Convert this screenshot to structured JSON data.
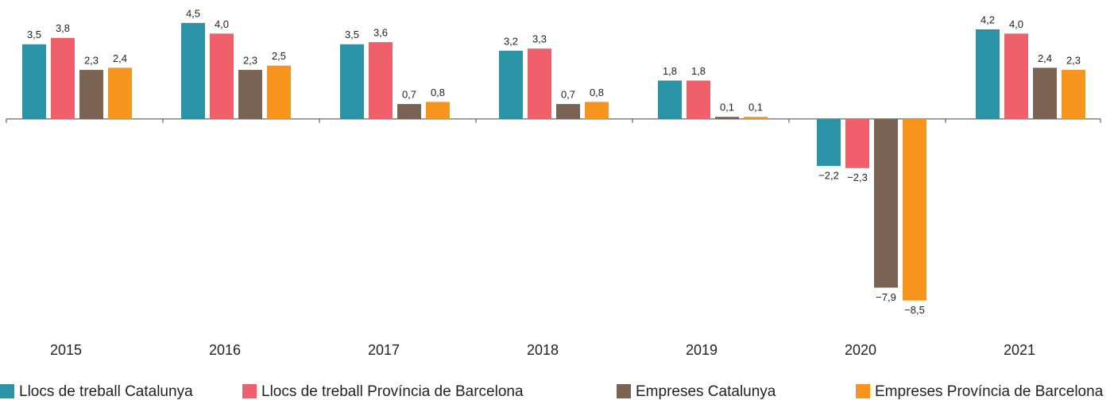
{
  "chart_data": {
    "type": "bar",
    "categories": [
      "2015",
      "2016",
      "2017",
      "2018",
      "2019",
      "2020",
      "2021"
    ],
    "ylim": [
      -9,
      5.5
    ],
    "series": [
      {
        "name": "Llocs de treball Catalunya",
        "color": "#2a93a6",
        "values": [
          3.5,
          4.5,
          3.5,
          3.2,
          1.8,
          -2.2,
          4.2
        ],
        "value_labels": [
          "3,5",
          "4,5",
          "3,5",
          "3,2",
          "1,8",
          "−2,2",
          "4,2"
        ]
      },
      {
        "name": "Llocs de treball Província de Barcelona",
        "color": "#f0606a",
        "values": [
          3.8,
          4.0,
          3.6,
          3.3,
          1.8,
          -2.3,
          4.0
        ],
        "value_labels": [
          "3,8",
          "4,0",
          "3,6",
          "3,3",
          "1,8",
          "−2,3",
          "4,0"
        ]
      },
      {
        "name": "Empreses Catalunya",
        "color": "#7a6353",
        "values": [
          2.3,
          2.3,
          0.7,
          0.7,
          0.1,
          -7.9,
          2.4
        ],
        "value_labels": [
          "2,3",
          "2,3",
          "0,7",
          "0,7",
          "0,1",
          "−7,9",
          "2,4"
        ]
      },
      {
        "name": "Empreses Província de Barcelona",
        "color": "#f7941d",
        "values": [
          2.4,
          2.5,
          0.8,
          0.8,
          0.1,
          -8.5,
          2.3
        ],
        "value_labels": [
          "2,4",
          "2,5",
          "0,8",
          "0,8",
          "0,1",
          "−8,5",
          "2,3"
        ]
      }
    ]
  }
}
